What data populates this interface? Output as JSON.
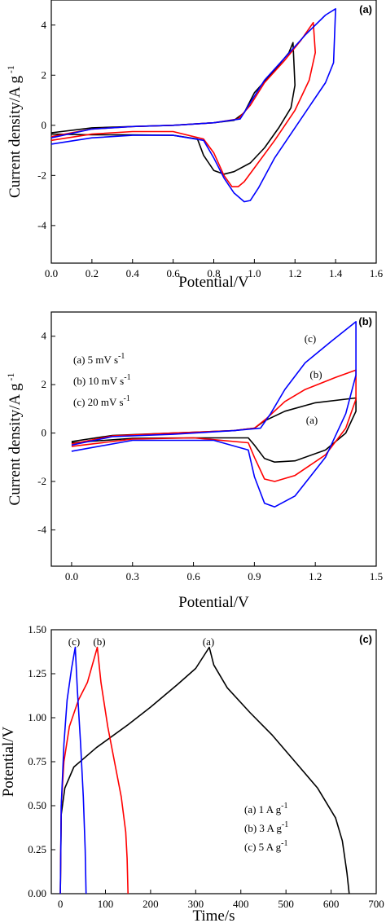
{
  "chart_data": [
    {
      "type": "line",
      "panel_label": "(a)",
      "xlabel": "Potential/V",
      "ylabel": "Current density/A g",
      "ylabel_sup": "-1",
      "xlim": [
        0.0,
        1.6
      ],
      "ylim": [
        -5.5,
        5.0
      ],
      "xticks": [
        "0.0",
        "0.2",
        "0.4",
        "0.6",
        "0.8",
        "1.0",
        "1.2",
        "1.4",
        "1.6"
      ],
      "yticks": [
        "-4",
        "-2",
        "0",
        "2",
        "4"
      ],
      "xtick_values": [
        0.0,
        0.2,
        0.4,
        0.6,
        0.8,
        1.0,
        1.2,
        1.4,
        1.6
      ],
      "ytick_values": [
        -4,
        -2,
        0,
        2,
        4
      ],
      "grid": false,
      "series": [
        {
          "color": "#000000",
          "points": [
            [
              0.0,
              -0.3
            ],
            [
              0.2,
              -0.1
            ],
            [
              0.4,
              -0.05
            ],
            [
              0.6,
              0.0
            ],
            [
              0.8,
              0.1
            ],
            [
              0.9,
              0.2
            ],
            [
              0.95,
              0.5
            ],
            [
              1.0,
              1.3
            ],
            [
              1.1,
              2.2
            ],
            [
              1.17,
              2.9
            ],
            [
              1.19,
              3.3
            ],
            [
              1.2,
              1.6
            ],
            [
              1.18,
              0.7
            ],
            [
              1.12,
              -0.1
            ],
            [
              1.05,
              -0.9
            ],
            [
              0.98,
              -1.5
            ],
            [
              0.9,
              -1.85
            ],
            [
              0.85,
              -1.95
            ],
            [
              0.8,
              -1.8
            ],
            [
              0.75,
              -1.2
            ],
            [
              0.72,
              -0.55
            ],
            [
              0.6,
              -0.4
            ],
            [
              0.4,
              -0.38
            ],
            [
              0.2,
              -0.38
            ],
            [
              0.0,
              -0.35
            ]
          ]
        },
        {
          "color": "#ff0000",
          "points": [
            [
              0.0,
              -0.45
            ],
            [
              0.2,
              -0.15
            ],
            [
              0.4,
              -0.05
            ],
            [
              0.6,
              0.0
            ],
            [
              0.8,
              0.1
            ],
            [
              0.92,
              0.25
            ],
            [
              0.98,
              0.8
            ],
            [
              1.05,
              1.7
            ],
            [
              1.15,
              2.6
            ],
            [
              1.23,
              3.4
            ],
            [
              1.29,
              4.1
            ],
            [
              1.3,
              2.9
            ],
            [
              1.27,
              1.8
            ],
            [
              1.2,
              0.6
            ],
            [
              1.1,
              -0.6
            ],
            [
              1.0,
              -1.7
            ],
            [
              0.95,
              -2.25
            ],
            [
              0.92,
              -2.45
            ],
            [
              0.89,
              -2.45
            ],
            [
              0.85,
              -2.0
            ],
            [
              0.8,
              -1.1
            ],
            [
              0.75,
              -0.55
            ],
            [
              0.6,
              -0.25
            ],
            [
              0.4,
              -0.25
            ],
            [
              0.2,
              -0.35
            ],
            [
              0.0,
              -0.6
            ]
          ]
        },
        {
          "color": "#0000ff",
          "points": [
            [
              0.0,
              -0.5
            ],
            [
              0.2,
              -0.15
            ],
            [
              0.4,
              -0.05
            ],
            [
              0.6,
              0.0
            ],
            [
              0.8,
              0.1
            ],
            [
              0.93,
              0.25
            ],
            [
              0.98,
              0.9
            ],
            [
              1.05,
              1.8
            ],
            [
              1.15,
              2.7
            ],
            [
              1.25,
              3.6
            ],
            [
              1.35,
              4.4
            ],
            [
              1.4,
              4.65
            ],
            [
              1.39,
              2.5
            ],
            [
              1.35,
              1.7
            ],
            [
              1.25,
              0.5
            ],
            [
              1.1,
              -1.3
            ],
            [
              1.02,
              -2.5
            ],
            [
              0.98,
              -3.0
            ],
            [
              0.95,
              -3.05
            ],
            [
              0.9,
              -2.7
            ],
            [
              0.85,
              -2.1
            ],
            [
              0.8,
              -1.3
            ],
            [
              0.75,
              -0.6
            ],
            [
              0.6,
              -0.4
            ],
            [
              0.4,
              -0.4
            ],
            [
              0.2,
              -0.5
            ],
            [
              0.0,
              -0.75
            ]
          ]
        }
      ]
    },
    {
      "type": "line",
      "panel_label": "(b)",
      "xlabel": "Potential/V",
      "ylabel": "Current density/A g",
      "ylabel_sup": "-1",
      "xlim": [
        -0.1,
        1.5
      ],
      "ylim": [
        -5.5,
        5.0
      ],
      "xticks": [
        "0.0",
        "0.3",
        "0.6",
        "0.9",
        "1.2",
        "1.5"
      ],
      "yticks": [
        "-4",
        "-2",
        "0",
        "2",
        "4"
      ],
      "xtick_values": [
        0.0,
        0.3,
        0.6,
        0.9,
        1.2,
        1.5
      ],
      "ytick_values": [
        -4,
        -2,
        0,
        2,
        4
      ],
      "grid": false,
      "legend": [
        {
          "label": "(a) 5 mV s",
          "sup": "-1"
        },
        {
          "label": "(b) 10 mV s",
          "sup": "-1"
        },
        {
          "label": "(c) 20 mV s",
          "sup": "-1"
        }
      ],
      "annotations": [
        "(a)",
        "(b)",
        "(c)"
      ],
      "series": [
        {
          "name": "(a)",
          "color": "#000000",
          "points": [
            [
              0.0,
              -0.35
            ],
            [
              0.2,
              -0.1
            ],
            [
              0.5,
              0.0
            ],
            [
              0.8,
              0.1
            ],
            [
              0.9,
              0.2
            ],
            [
              0.95,
              0.5
            ],
            [
              1.05,
              0.9
            ],
            [
              1.2,
              1.25
            ],
            [
              1.4,
              1.45
            ],
            [
              1.4,
              0.9
            ],
            [
              1.35,
              0.0
            ],
            [
              1.25,
              -0.7
            ],
            [
              1.1,
              -1.15
            ],
            [
              1.0,
              -1.2
            ],
            [
              0.95,
              -1.05
            ],
            [
              0.9,
              -0.5
            ],
            [
              0.87,
              -0.2
            ],
            [
              0.6,
              -0.2
            ],
            [
              0.3,
              -0.22
            ],
            [
              0.0,
              -0.4
            ]
          ]
        },
        {
          "name": "(b)",
          "color": "#ff0000",
          "points": [
            [
              0.0,
              -0.45
            ],
            [
              0.2,
              -0.12
            ],
            [
              0.5,
              0.0
            ],
            [
              0.8,
              0.1
            ],
            [
              0.9,
              0.2
            ],
            [
              0.96,
              0.6
            ],
            [
              1.05,
              1.3
            ],
            [
              1.15,
              1.8
            ],
            [
              1.3,
              2.3
            ],
            [
              1.4,
              2.6
            ],
            [
              1.4,
              1.4
            ],
            [
              1.35,
              0.2
            ],
            [
              1.25,
              -0.9
            ],
            [
              1.1,
              -1.75
            ],
            [
              1.0,
              -2.0
            ],
            [
              0.95,
              -1.9
            ],
            [
              0.9,
              -1.0
            ],
            [
              0.87,
              -0.4
            ],
            [
              0.6,
              -0.2
            ],
            [
              0.3,
              -0.25
            ],
            [
              0.0,
              -0.55
            ]
          ]
        },
        {
          "name": "(c)",
          "color": "#0000ff",
          "points": [
            [
              0.0,
              -0.5
            ],
            [
              0.2,
              -0.15
            ],
            [
              0.5,
              -0.05
            ],
            [
              0.8,
              0.1
            ],
            [
              0.93,
              0.2
            ],
            [
              0.98,
              0.8
            ],
            [
              1.05,
              1.8
            ],
            [
              1.15,
              2.9
            ],
            [
              1.28,
              3.8
            ],
            [
              1.4,
              4.6
            ],
            [
              1.4,
              2.4
            ],
            [
              1.35,
              0.8
            ],
            [
              1.25,
              -1.0
            ],
            [
              1.1,
              -2.6
            ],
            [
              1.0,
              -3.05
            ],
            [
              0.95,
              -2.9
            ],
            [
              0.9,
              -1.8
            ],
            [
              0.87,
              -0.7
            ],
            [
              0.7,
              -0.3
            ],
            [
              0.3,
              -0.3
            ],
            [
              0.0,
              -0.75
            ]
          ]
        }
      ]
    },
    {
      "type": "line",
      "panel_label": "(c)",
      "xlabel": "Time/s",
      "ylabel": "Potential/V",
      "xlim": [
        -20,
        700
      ],
      "ylim": [
        0.0,
        1.5
      ],
      "xticks": [
        "0",
        "100",
        "200",
        "300",
        "400",
        "500",
        "600",
        "700"
      ],
      "yticks": [
        "0.00",
        "0.25",
        "0.50",
        "0.75",
        "1.00",
        "1.25",
        "1.50"
      ],
      "xtick_values": [
        0,
        100,
        200,
        300,
        400,
        500,
        600,
        700
      ],
      "ytick_values": [
        0.0,
        0.25,
        0.5,
        0.75,
        1.0,
        1.25,
        1.5
      ],
      "grid": false,
      "legend": [
        {
          "label": "(a) 1 A g",
          "sup": "-1"
        },
        {
          "label": "(b) 3 A g",
          "sup": "-1"
        },
        {
          "label": "(c) 5 A g",
          "sup": "-1"
        }
      ],
      "annotations": [
        "(a)",
        "(b)",
        "(c)"
      ],
      "series": [
        {
          "name": "(a)",
          "color": "#000000",
          "points": [
            [
              0,
              0.0
            ],
            [
              2,
              0.45
            ],
            [
              10,
              0.6
            ],
            [
              30,
              0.72
            ],
            [
              80,
              0.83
            ],
            [
              150,
              0.96
            ],
            [
              200,
              1.06
            ],
            [
              260,
              1.19
            ],
            [
              300,
              1.28
            ],
            [
              330,
              1.4
            ],
            [
              340,
              1.3
            ],
            [
              370,
              1.17
            ],
            [
              420,
              1.03
            ],
            [
              470,
              0.9
            ],
            [
              520,
              0.75
            ],
            [
              570,
              0.6
            ],
            [
              610,
              0.43
            ],
            [
              625,
              0.3
            ],
            [
              635,
              0.12
            ],
            [
              640,
              0.0
            ]
          ]
        },
        {
          "name": "(b)",
          "color": "#ff0000",
          "points": [
            [
              0,
              0.0
            ],
            [
              2,
              0.5
            ],
            [
              8,
              0.75
            ],
            [
              20,
              0.95
            ],
            [
              40,
              1.1
            ],
            [
              60,
              1.2
            ],
            [
              82,
              1.4
            ],
            [
              90,
              1.2
            ],
            [
              105,
              0.95
            ],
            [
              120,
              0.75
            ],
            [
              135,
              0.55
            ],
            [
              145,
              0.35
            ],
            [
              148,
              0.2
            ],
            [
              150,
              0.0
            ]
          ]
        },
        {
          "name": "(c)",
          "color": "#0000ff",
          "points": [
            [
              0,
              0.0
            ],
            [
              2,
              0.5
            ],
            [
              8,
              0.85
            ],
            [
              15,
              1.1
            ],
            [
              25,
              1.28
            ],
            [
              33,
              1.4
            ],
            [
              38,
              1.15
            ],
            [
              45,
              0.85
            ],
            [
              51,
              0.55
            ],
            [
              55,
              0.25
            ],
            [
              57,
              0.0
            ]
          ]
        }
      ]
    }
  ]
}
